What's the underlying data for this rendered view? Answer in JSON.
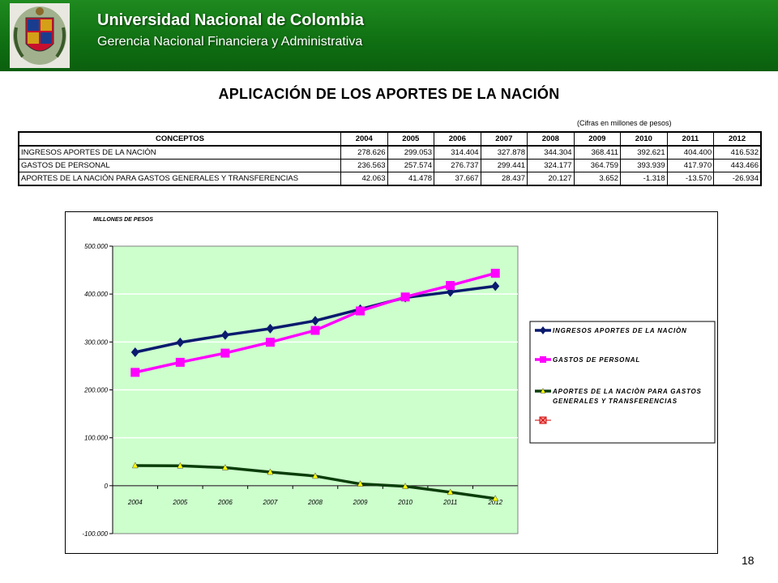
{
  "header": {
    "university": "Universidad Nacional de Colombia",
    "department": "Gerencia Nacional Financiera y Administrativa"
  },
  "page_title": "APLICACIÓN DE LOS APORTES DE LA NACIÓN",
  "units_note": "(Cifras en millones de pesos)",
  "table": {
    "header_concept": "CONCEPTOS",
    "years": [
      "2004",
      "2005",
      "2006",
      "2007",
      "2008",
      "2009",
      "2010",
      "2011",
      "2012"
    ],
    "rows": [
      {
        "concept": "INGRESOS APORTES DE LA NACIÒN",
        "values": [
          "278.626",
          "299.053",
          "314.404",
          "327.878",
          "344.304",
          "368.411",
          "392.621",
          "404.400",
          "416.532"
        ]
      },
      {
        "concept": "GASTOS DE PERSONAL",
        "values": [
          "236.563",
          "257.574",
          "276.737",
          "299.441",
          "324.177",
          "364.759",
          "393.939",
          "417.970",
          "443.466"
        ]
      },
      {
        "concept": "APORTES DE LA NACIÒN PARA GASTOS GENERALES Y TRANSFERENCIAS",
        "values": [
          "42.063",
          "41.478",
          "37.667",
          "28.437",
          "20.127",
          "3.652",
          "-1.318",
          "-13.570",
          "-26.934"
        ]
      }
    ]
  },
  "chart_data": {
    "type": "line",
    "ylabel": "MILLONES DE PESOS",
    "xlabel": "",
    "categories": [
      "2004",
      "2005",
      "2006",
      "2007",
      "2008",
      "2009",
      "2010",
      "2011",
      "2012"
    ],
    "ylim": [
      -100000,
      500000
    ],
    "yticks": [
      -100000,
      0,
      100000,
      200000,
      300000,
      400000,
      500000
    ],
    "ytick_labels": [
      "-100.000",
      "0",
      "100.000",
      "200.000",
      "300.000",
      "400.000",
      "500.000"
    ],
    "grid": true,
    "legend_position": "right",
    "series": [
      {
        "name": "INGRESOS APORTES DE LA NACIÒN",
        "color": "#0a1a6e",
        "marker": "diamond",
        "values": [
          278626,
          299053,
          314404,
          327878,
          344304,
          368411,
          392621,
          404400,
          416532
        ]
      },
      {
        "name": "GASTOS DE PERSONAL",
        "color": "#ff00ff",
        "marker": "square",
        "values": [
          236563,
          257574,
          276737,
          299441,
          324177,
          364759,
          393939,
          417970,
          443466
        ]
      },
      {
        "name": "APORTES DE LA NACIÒN PARA GASTOS GENERALES Y TRANSFERENCIAS",
        "color": "#0b3d0b",
        "marker": "triangle",
        "marker_color": "#ffff00",
        "values": [
          42063,
          41478,
          37667,
          28437,
          20127,
          3652,
          -1318,
          -13570,
          -26934
        ]
      }
    ],
    "plot_background": "#ccffcc"
  },
  "page_number": "18"
}
